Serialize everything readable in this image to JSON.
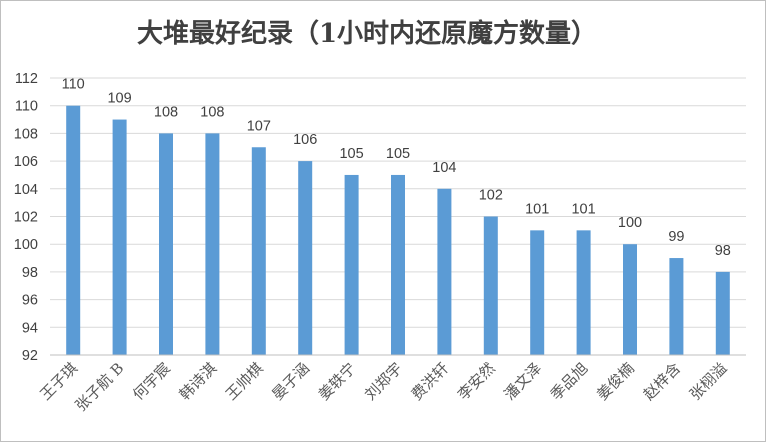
{
  "chart_data": {
    "type": "bar",
    "title": "大堆最好纪录（1小时内还原魔方数量）",
    "xlabel": "",
    "ylabel": "",
    "ylim": [
      92,
      112
    ],
    "yticks": [
      92,
      94,
      96,
      98,
      100,
      102,
      104,
      106,
      108,
      110,
      112
    ],
    "grid": true,
    "legend": "none",
    "bar_color": "#5b9bd5",
    "data_labels": true,
    "categories": [
      "王子琪",
      "张子航 B",
      "何宇宸",
      "韩诗淇",
      "王帅棋",
      "晏子涵",
      "姜轶宁",
      "刘郑宇",
      "费洪轩",
      "李安然",
      "潘文泽",
      "季品旭",
      "姜俊楠",
      "赵梓含",
      "张栩溢"
    ],
    "values": [
      110,
      109,
      108,
      108,
      107,
      106,
      105,
      105,
      104,
      102,
      101,
      101,
      100,
      99,
      98
    ]
  }
}
